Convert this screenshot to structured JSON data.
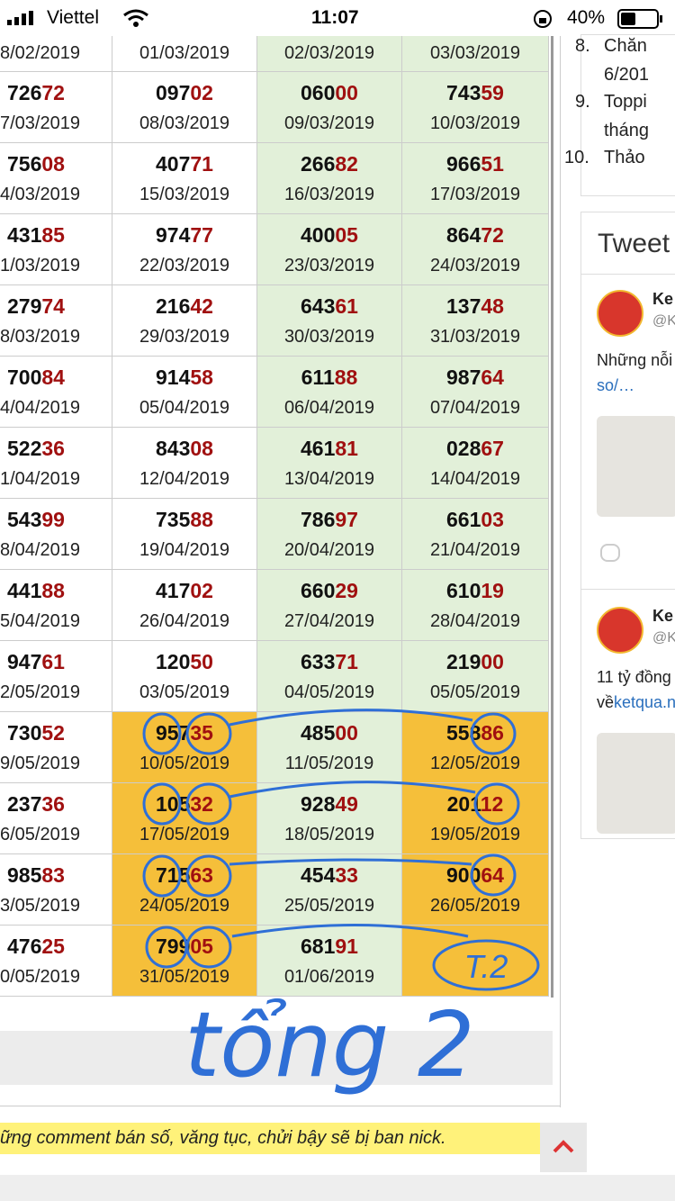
{
  "status": {
    "carrier": "Viettel",
    "time": "11:07",
    "battery": "40%"
  },
  "table": {
    "rows": [
      [
        {
          "date": "8/02/2019"
        },
        {
          "date": "01/03/2019"
        },
        {
          "date": "02/03/2019"
        },
        {
          "date": "03/03/2019"
        }
      ],
      [
        {
          "head": "726",
          "tail": "72",
          "date": "7/03/2019"
        },
        {
          "head": "097",
          "tail": "02",
          "date": "08/03/2019"
        },
        {
          "head": "060",
          "tail": "00",
          "date": "09/03/2019"
        },
        {
          "head": "743",
          "tail": "59",
          "date": "10/03/2019"
        }
      ],
      [
        {
          "head": "756",
          "tail": "08",
          "date": "4/03/2019"
        },
        {
          "head": "407",
          "tail": "71",
          "date": "15/03/2019"
        },
        {
          "head": "266",
          "tail": "82",
          "date": "16/03/2019"
        },
        {
          "head": "966",
          "tail": "51",
          "date": "17/03/2019"
        }
      ],
      [
        {
          "head": "431",
          "tail": "85",
          "date": "1/03/2019"
        },
        {
          "head": "974",
          "tail": "77",
          "date": "22/03/2019"
        },
        {
          "head": "400",
          "tail": "05",
          "date": "23/03/2019"
        },
        {
          "head": "864",
          "tail": "72",
          "date": "24/03/2019"
        }
      ],
      [
        {
          "head": "279",
          "tail": "74",
          "date": "8/03/2019"
        },
        {
          "head": "216",
          "tail": "42",
          "date": "29/03/2019"
        },
        {
          "head": "643",
          "tail": "61",
          "date": "30/03/2019"
        },
        {
          "head": "137",
          "tail": "48",
          "date": "31/03/2019"
        }
      ],
      [
        {
          "head": "700",
          "tail": "84",
          "date": "4/04/2019"
        },
        {
          "head": "914",
          "tail": "58",
          "date": "05/04/2019"
        },
        {
          "head": "611",
          "tail": "88",
          "date": "06/04/2019"
        },
        {
          "head": "987",
          "tail": "64",
          "date": "07/04/2019"
        }
      ],
      [
        {
          "head": "522",
          "tail": "36",
          "date": "1/04/2019"
        },
        {
          "head": "843",
          "tail": "08",
          "date": "12/04/2019"
        },
        {
          "head": "461",
          "tail": "81",
          "date": "13/04/2019"
        },
        {
          "head": "028",
          "tail": "67",
          "date": "14/04/2019"
        }
      ],
      [
        {
          "head": "543",
          "tail": "99",
          "date": "8/04/2019"
        },
        {
          "head": "735",
          "tail": "88",
          "date": "19/04/2019"
        },
        {
          "head": "786",
          "tail": "97",
          "date": "20/04/2019"
        },
        {
          "head": "661",
          "tail": "03",
          "date": "21/04/2019"
        }
      ],
      [
        {
          "head": "441",
          "tail": "88",
          "date": "5/04/2019"
        },
        {
          "head": "417",
          "tail": "02",
          "date": "26/04/2019"
        },
        {
          "head": "660",
          "tail": "29",
          "date": "27/04/2019"
        },
        {
          "head": "610",
          "tail": "19",
          "date": "28/04/2019"
        }
      ],
      [
        {
          "head": "947",
          "tail": "61",
          "date": "2/05/2019"
        },
        {
          "head": "120",
          "tail": "50",
          "date": "03/05/2019"
        },
        {
          "head": "633",
          "tail": "71",
          "date": "04/05/2019"
        },
        {
          "head": "219",
          "tail": "00",
          "date": "05/05/2019"
        }
      ],
      [
        {
          "head": "730",
          "tail": "52",
          "date": "9/05/2019"
        },
        {
          "head": "957",
          "tail": "35",
          "date": "10/05/2019"
        },
        {
          "head": "485",
          "tail": "00",
          "date": "11/05/2019"
        },
        {
          "head": "558",
          "tail": "86",
          "date": "12/05/2019"
        }
      ],
      [
        {
          "head": "237",
          "tail": "36",
          "date": "6/05/2019"
        },
        {
          "head": "105",
          "tail": "32",
          "date": "17/05/2019"
        },
        {
          "head": "928",
          "tail": "49",
          "date": "18/05/2019"
        },
        {
          "head": "201",
          "tail": "12",
          "date": "19/05/2019"
        }
      ],
      [
        {
          "head": "985",
          "tail": "83",
          "date": "3/05/2019"
        },
        {
          "head": "715",
          "tail": "63",
          "date": "24/05/2019"
        },
        {
          "head": "454",
          "tail": "33",
          "date": "25/05/2019"
        },
        {
          "head": "900",
          "tail": "64",
          "date": "26/05/2019"
        }
      ],
      [
        {
          "head": "476",
          "tail": "25",
          "date": "0/05/2019"
        },
        {
          "head": "799",
          "tail": "05",
          "date": "31/05/2019"
        },
        {
          "head": "681",
          "tail": "91",
          "date": "01/06/2019"
        },
        null
      ]
    ]
  },
  "sidebar": {
    "list": [
      {
        "num": "8.",
        "lines": [
          "Chăn",
          "6/201"
        ]
      },
      {
        "num": "9.",
        "lines": [
          "Toppi",
          "tháng"
        ]
      },
      {
        "num": "10.",
        "lines": [
          "Thảo"
        ]
      }
    ],
    "tweet_title": "Tweet",
    "tweets": [
      {
        "name": "Ke",
        "handle": "@K",
        "text": "Những nỗi",
        "link": "so/…"
      },
      {
        "name": "Ke",
        "handle": "@K",
        "text": "11 tỷ đồng",
        "link_prefix": "về",
        "link": "ketqua.n"
      }
    ]
  },
  "notice": "ững comment bán số, văng tục, chửi bậy sẽ bị ban nick.",
  "annotations": {
    "sum": "tổng 2",
    "mark": "T.2"
  }
}
